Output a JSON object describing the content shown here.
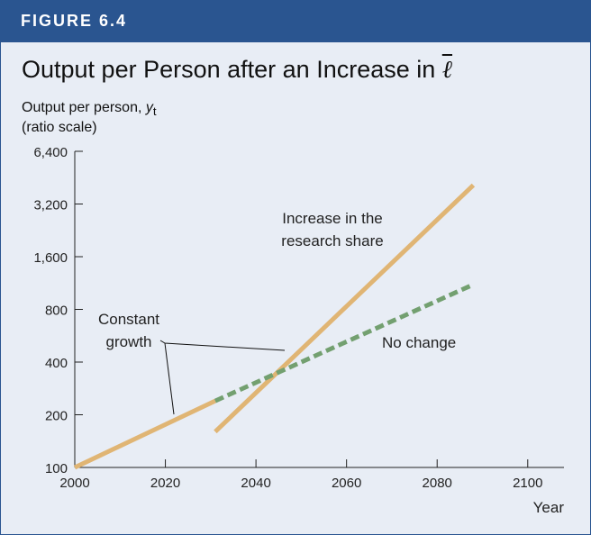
{
  "banner": {
    "label": "FIGURE 6.4"
  },
  "chart_data": {
    "type": "line",
    "title": "Output per Person after an Increase in",
    "title_symbol": "ℓ",
    "ylabel_text": "Output per person,",
    "ylabel_var": "y",
    "ylabel_sub": "t",
    "ylabel_scale": "(ratio scale)",
    "xlabel": "Year",
    "y_scale": "log",
    "xlim": [
      2000,
      2108
    ],
    "ylim": [
      100,
      6400
    ],
    "x_ticks": [
      2000,
      2020,
      2040,
      2060,
      2080,
      2100
    ],
    "y_ticks": [
      100,
      200,
      400,
      800,
      1600,
      3200,
      6400
    ],
    "y_tick_labels": [
      "100",
      "200",
      "400",
      "800",
      "1,600",
      "3,200",
      "6,400"
    ],
    "series": [
      {
        "id": "constant",
        "style": "solid",
        "color": "#e0b574",
        "points": [
          [
            2000,
            100
          ],
          [
            2031,
            240
          ]
        ]
      },
      {
        "id": "increase",
        "style": "solid",
        "color": "#e0b574",
        "points": [
          [
            2031,
            160
          ],
          [
            2088,
            4100
          ]
        ]
      },
      {
        "id": "nochange",
        "style": "dashed",
        "color": "#73a070",
        "points": [
          [
            2031,
            240
          ],
          [
            2088,
            1110
          ]
        ]
      }
    ],
    "annotations": {
      "increase_line1": "Increase in the",
      "increase_line2": "research share",
      "constant_line1": "Constant",
      "constant_line2": "growth",
      "no_change": "No change"
    }
  }
}
